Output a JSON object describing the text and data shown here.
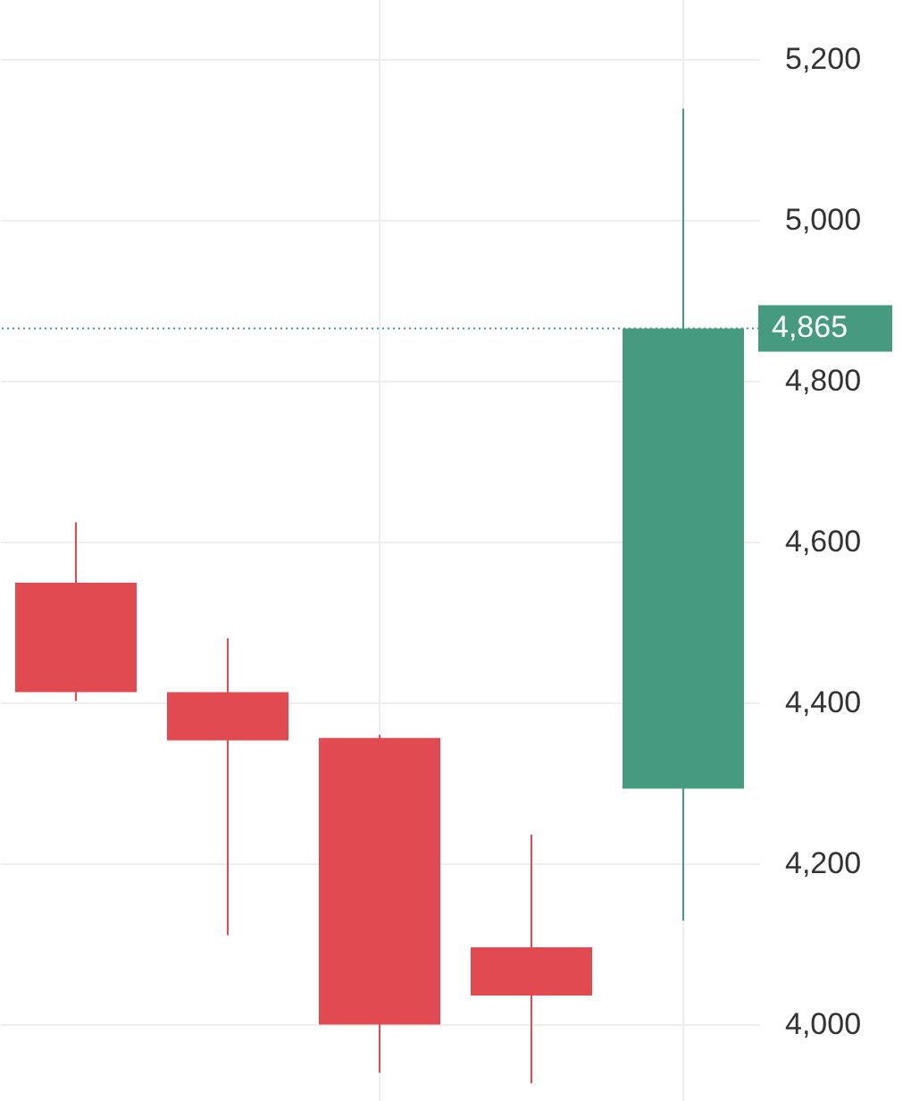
{
  "chart_data": {
    "type": "candlestick",
    "categories": [
      null,
      null,
      null,
      null,
      null
    ],
    "ohlc": [
      [
        4549,
        4624,
        4402,
        4413
      ],
      [
        4413,
        4480,
        4111,
        4353
      ],
      [
        4356,
        4360,
        3940,
        4000
      ],
      [
        4096,
        4236,
        3927,
        4036
      ],
      [
        4293,
        5138,
        4129,
        4865
      ]
    ],
    "colors": [
      "#e04a50",
      "#e04a50",
      "#e04a50",
      "#e04a50",
      "#459a80"
    ],
    "ylim": [
      3905,
      5273
    ],
    "yticks": [
      {
        "value": 4000,
        "label": "4,000"
      },
      {
        "value": 4200,
        "label": "4,200"
      },
      {
        "value": 4400,
        "label": "4,400"
      },
      {
        "value": 4600,
        "label": "4,600"
      },
      {
        "value": 4800,
        "label": "4,800"
      },
      {
        "value": 5000,
        "label": "5,000"
      },
      {
        "value": 5200,
        "label": "5,200"
      }
    ],
    "grid": true,
    "tick_labels": "y",
    "ref_lines": [
      {
        "axis": "y",
        "value": 4865,
        "label": "4,865",
        "color": "#459a80",
        "line_style": "dotted"
      }
    ]
  }
}
